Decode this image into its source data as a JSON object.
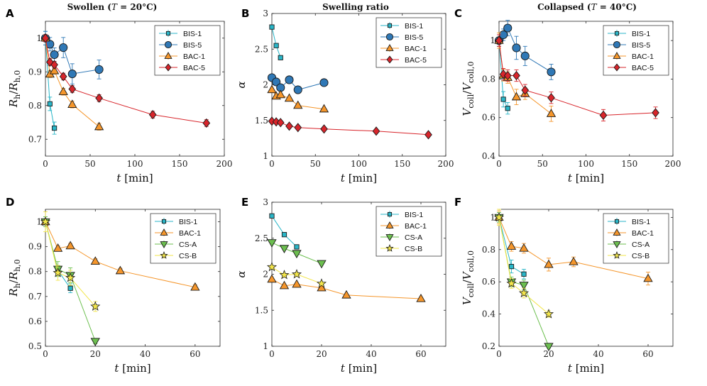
{
  "column_titles": [
    "Swollen (T = 20°C)",
    "Swelling ratio",
    "Collapsed (T = 40°C)"
  ],
  "colors": {
    "BIS-1": "#29b6c8",
    "BIS-5": "#2f78b6",
    "BAC-1": "#f5962b",
    "BAC-5": "#d8252b",
    "CS-A": "#6cbf4f",
    "CS-B": "#f2e54a"
  },
  "markers": {
    "BIS-1": "square",
    "BIS-5": "circle",
    "BAC-1": "triangle-up",
    "BAC-5": "diamond",
    "CS-A": "triangle-down",
    "CS-B": "star"
  },
  "chart_data": [
    {
      "panel": "A",
      "type": "line",
      "title": "Swollen (T = 20°C)",
      "xlabel": "t [min]",
      "ylabel": "R_h/R_h,0",
      "xlim": [
        0,
        200
      ],
      "ylim": [
        0.65,
        1.05
      ],
      "xticks": [
        "0",
        "50",
        "100",
        "150",
        "200"
      ],
      "xtick_values": [
        0,
        50,
        100,
        150,
        200
      ],
      "yticks": [
        "0.7",
        "0.8",
        "0.9",
        "1"
      ],
      "ytick_values": [
        0.7,
        0.8,
        0.9,
        1.0
      ],
      "legend": [
        "BIS-1",
        "BIS-5",
        "BAC-1",
        "BAC-5"
      ],
      "series": [
        {
          "name": "BIS-1",
          "x": [
            0,
            5,
            10
          ],
          "y": [
            1.0,
            0.805,
            0.733
          ],
          "err": [
            0.02,
            0.02,
            0.018
          ]
        },
        {
          "name": "BIS-5",
          "x": [
            0,
            5,
            10,
            20,
            30,
            60
          ],
          "y": [
            1.0,
            0.982,
            0.951,
            0.972,
            0.894,
            0.907
          ],
          "err": [
            0.02,
            0.02,
            0.02,
            0.03,
            0.03,
            0.028
          ]
        },
        {
          "name": "BAC-1",
          "x": [
            0,
            5,
            10,
            20,
            30,
            60
          ],
          "y": [
            1.0,
            0.893,
            0.903,
            0.841,
            0.803,
            0.737
          ],
          "err": [
            0.01,
            0.01,
            0.01,
            0.01,
            0.01,
            0.01
          ]
        },
        {
          "name": "BAC-5",
          "x": [
            0,
            5,
            10,
            20,
            30,
            60,
            120,
            180
          ],
          "y": [
            1.0,
            0.929,
            0.921,
            0.886,
            0.849,
            0.822,
            0.773,
            0.748
          ],
          "err": [
            0.01,
            0.01,
            0.01,
            0.01,
            0.01,
            0.01,
            0.01,
            0.01
          ]
        }
      ]
    },
    {
      "panel": "B",
      "type": "line",
      "title": "Swelling ratio",
      "xlabel": "t [min]",
      "ylabel": "α",
      "xlim": [
        0,
        200
      ],
      "ylim": [
        1.0,
        3.0
      ],
      "xticks": [
        "0",
        "50",
        "100",
        "150",
        "200"
      ],
      "xtick_values": [
        0,
        50,
        100,
        150,
        200
      ],
      "yticks": [
        "1",
        "1.5",
        "2",
        "2.5",
        "3"
      ],
      "ytick_values": [
        1.0,
        1.5,
        2.0,
        2.5,
        3.0
      ],
      "legend": [
        "BIS-1",
        "BIS-5",
        "BAC-1",
        "BAC-5"
      ],
      "series": [
        {
          "name": "BIS-1",
          "x": [
            0,
            5,
            10
          ],
          "y": [
            2.81,
            2.55,
            2.38
          ],
          "err": [
            0,
            0,
            0
          ]
        },
        {
          "name": "BIS-5",
          "x": [
            0,
            5,
            10,
            20,
            30,
            60
          ],
          "y": [
            2.1,
            2.04,
            1.96,
            2.07,
            1.93,
            2.03
          ],
          "err": [
            0,
            0,
            0,
            0,
            0,
            0.05
          ]
        },
        {
          "name": "BAC-1",
          "x": [
            0,
            5,
            10,
            20,
            30,
            60
          ],
          "y": [
            1.93,
            1.84,
            1.86,
            1.81,
            1.71,
            1.66
          ],
          "err": [
            0,
            0,
            0,
            0,
            0,
            0
          ]
        },
        {
          "name": "BAC-5",
          "x": [
            0,
            5,
            10,
            20,
            30,
            60,
            120,
            180
          ],
          "y": [
            1.49,
            1.48,
            1.47,
            1.42,
            1.4,
            1.38,
            1.35,
            1.3
          ],
          "err": [
            0,
            0,
            0,
            0,
            0,
            0,
            0,
            0
          ]
        }
      ]
    },
    {
      "panel": "C",
      "type": "line",
      "title": "Collapsed (T = 40°C)",
      "xlabel": "t [min]",
      "ylabel": "V_coll/V_coll,0",
      "xlim": [
        0,
        200
      ],
      "ylim": [
        0.4,
        1.1
      ],
      "xticks": [
        "0",
        "50",
        "100",
        "150",
        "200"
      ],
      "xtick_values": [
        0,
        50,
        100,
        150,
        200
      ],
      "yticks": [
        "0.4",
        "0.6",
        "0.8",
        "1"
      ],
      "ytick_values": [
        0.4,
        0.6,
        0.8,
        1.0
      ],
      "legend": [
        "BIS-1",
        "BIS-5",
        "BAC-1",
        "BAC-5"
      ],
      "series": [
        {
          "name": "BIS-1",
          "x": [
            0,
            5,
            10
          ],
          "y": [
            1.0,
            0.695,
            0.648
          ],
          "err": [
            0.03,
            0.04,
            0.03
          ]
        },
        {
          "name": "BIS-5",
          "x": [
            0,
            5,
            10,
            20,
            30,
            60
          ],
          "y": [
            1.0,
            1.03,
            1.065,
            0.962,
            0.92,
            0.837
          ],
          "err": [
            0.03,
            0.03,
            0.04,
            0.06,
            0.05,
            0.04
          ]
        },
        {
          "name": "BAC-1",
          "x": [
            0,
            5,
            10,
            20,
            30,
            60
          ],
          "y": [
            1.0,
            0.82,
            0.808,
            0.707,
            0.724,
            0.62
          ],
          "err": [
            0.04,
            0.03,
            0.03,
            0.04,
            0.03,
            0.04
          ]
        },
        {
          "name": "BAC-5",
          "x": [
            0,
            5,
            10,
            20,
            30,
            60,
            120,
            180
          ],
          "y": [
            1.0,
            0.825,
            0.818,
            0.818,
            0.742,
            0.703,
            0.612,
            0.625
          ],
          "err": [
            0.03,
            0.03,
            0.03,
            0.03,
            0.03,
            0.03,
            0.03,
            0.03
          ]
        }
      ]
    },
    {
      "panel": "D",
      "type": "line",
      "title": "",
      "xlabel": "t [min]",
      "ylabel": "R_h/R_h,0",
      "xlim": [
        0,
        70
      ],
      "ylim": [
        0.5,
        1.05
      ],
      "xticks": [
        "0",
        "20",
        "40",
        "60"
      ],
      "xtick_values": [
        0,
        20,
        40,
        60
      ],
      "yticks": [
        "0.5",
        "0.6",
        "0.7",
        "0.8",
        "0.9",
        "1"
      ],
      "ytick_values": [
        0.5,
        0.6,
        0.7,
        0.8,
        0.9,
        1.0
      ],
      "legend": [
        "BIS-1",
        "BAC-1",
        "CS-A",
        "CS-B"
      ],
      "series": [
        {
          "name": "BIS-1",
          "x": [
            0,
            5,
            10
          ],
          "y": [
            1.0,
            0.805,
            0.733
          ],
          "err": [
            0.02,
            0.02,
            0.018
          ]
        },
        {
          "name": "BAC-1",
          "x": [
            0,
            5,
            10,
            20,
            30,
            60
          ],
          "y": [
            1.0,
            0.893,
            0.903,
            0.841,
            0.803,
            0.737
          ],
          "err": [
            0.01,
            0.01,
            0.01,
            0.01,
            0.01,
            0.01
          ]
        },
        {
          "name": "CS-A",
          "x": [
            0,
            5,
            10,
            20
          ],
          "y": [
            1.0,
            0.81,
            0.785,
            0.52
          ],
          "err": [
            0.02,
            0.03,
            0.03,
            0.01
          ]
        },
        {
          "name": "CS-B",
          "x": [
            0,
            5,
            10,
            20
          ],
          "y": [
            1.0,
            0.795,
            0.775,
            0.66
          ],
          "err": [
            0.04,
            0.03,
            0.03,
            0.02
          ]
        }
      ]
    },
    {
      "panel": "E",
      "type": "line",
      "title": "",
      "xlabel": "t [min]",
      "ylabel": "α",
      "xlim": [
        0,
        70
      ],
      "ylim": [
        1.0,
        3.0
      ],
      "xticks": [
        "0",
        "20",
        "40",
        "60"
      ],
      "xtick_values": [
        0,
        20,
        40,
        60
      ],
      "yticks": [
        "1",
        "1.5",
        "2",
        "2.5",
        "3"
      ],
      "ytick_values": [
        1.0,
        1.5,
        2.0,
        2.5,
        3.0
      ],
      "legend": [
        "BIS-1",
        "BAC-1",
        "CS-A",
        "CS-B"
      ],
      "series": [
        {
          "name": "BIS-1",
          "x": [
            0,
            5,
            10
          ],
          "y": [
            2.81,
            2.55,
            2.38
          ],
          "err": [
            0,
            0,
            0
          ]
        },
        {
          "name": "BAC-1",
          "x": [
            0,
            5,
            10,
            20,
            30,
            60
          ],
          "y": [
            1.93,
            1.84,
            1.86,
            1.81,
            1.71,
            1.66
          ],
          "err": [
            0,
            0,
            0,
            0,
            0,
            0
          ]
        },
        {
          "name": "CS-A",
          "x": [
            0,
            5,
            10,
            20
          ],
          "y": [
            2.44,
            2.36,
            2.29,
            2.15
          ],
          "err": [
            0,
            0,
            0,
            0
          ]
        },
        {
          "name": "CS-B",
          "x": [
            0,
            5,
            10,
            20
          ],
          "y": [
            2.1,
            1.99,
            2.0,
            1.87
          ],
          "err": [
            0,
            0,
            0,
            0
          ]
        }
      ]
    },
    {
      "panel": "F",
      "type": "line",
      "title": "",
      "xlabel": "t [min]",
      "ylabel": "V_coll/V_coll,0",
      "xlim": [
        0,
        70
      ],
      "ylim": [
        0.2,
        1.05
      ],
      "xticks": [
        "0",
        "20",
        "40",
        "60"
      ],
      "xtick_values": [
        0,
        20,
        40,
        60
      ],
      "yticks": [
        "0.2",
        "0.4",
        "0.6",
        "0.8",
        "1"
      ],
      "ytick_values": [
        0.2,
        0.4,
        0.6,
        0.8,
        1.0
      ],
      "legend": [
        "BIS-1",
        "BAC-1",
        "CS-A",
        "CS-B"
      ],
      "series": [
        {
          "name": "BIS-1",
          "x": [
            0,
            5,
            10
          ],
          "y": [
            1.0,
            0.695,
            0.648
          ],
          "err": [
            0.03,
            0.04,
            0.03
          ]
        },
        {
          "name": "BAC-1",
          "x": [
            0,
            5,
            10,
            20,
            30,
            60
          ],
          "y": [
            1.0,
            0.82,
            0.808,
            0.707,
            0.724,
            0.62
          ],
          "err": [
            0.04,
            0.03,
            0.03,
            0.04,
            0.03,
            0.04
          ]
        },
        {
          "name": "CS-A",
          "x": [
            0,
            5,
            10,
            20
          ],
          "y": [
            1.0,
            0.6,
            0.58,
            0.2
          ],
          "err": [
            0.03,
            0.03,
            0.03,
            0.01
          ]
        },
        {
          "name": "CS-B",
          "x": [
            0,
            5,
            10,
            20
          ],
          "y": [
            1.0,
            0.59,
            0.53,
            0.4
          ],
          "err": [
            0.05,
            0.03,
            0.03,
            0.02
          ]
        }
      ]
    }
  ]
}
